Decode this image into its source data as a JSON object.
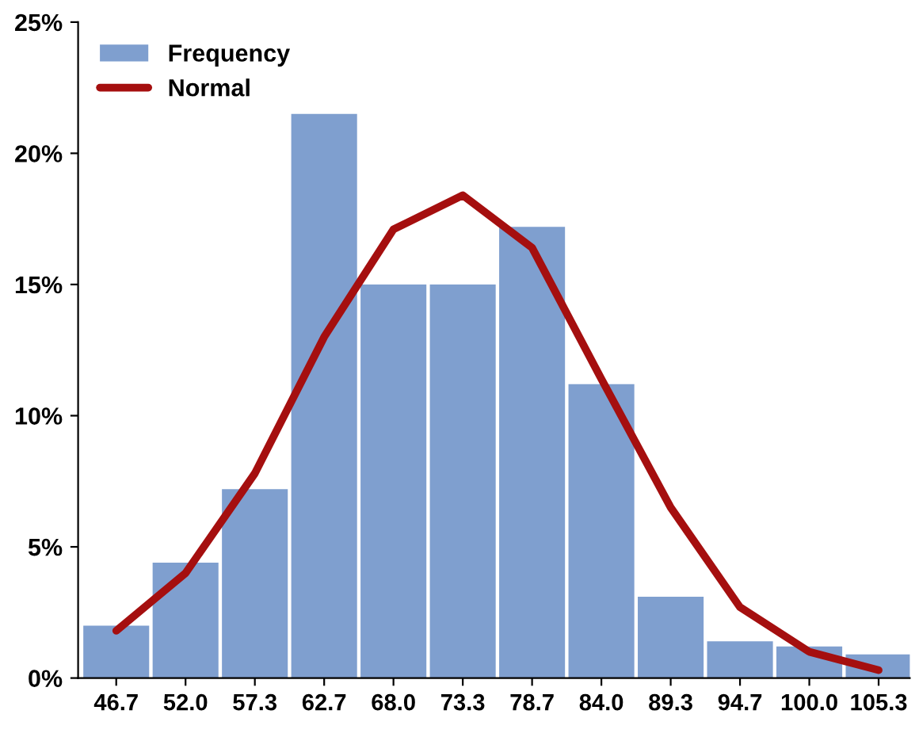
{
  "chart_data": {
    "type": "bar",
    "categories": [
      "46.7",
      "52.0",
      "57.3",
      "62.7",
      "68.0",
      "73.3",
      "78.7",
      "84.0",
      "89.3",
      "94.7",
      "100.0",
      "105.3"
    ],
    "series": [
      {
        "name": "Frequency",
        "color": "#7f9fcf",
        "values": [
          2.0,
          4.4,
          7.2,
          21.5,
          15.0,
          15.0,
          17.2,
          11.2,
          3.1,
          1.4,
          1.2,
          0.9
        ]
      },
      {
        "name": "Normal",
        "type": "line",
        "color": "#a50f0f",
        "values": [
          1.8,
          4.0,
          7.8,
          13.0,
          17.1,
          18.4,
          16.4,
          11.4,
          6.5,
          2.7,
          1.0,
          0.3
        ]
      }
    ],
    "ylim": [
      0,
      25
    ],
    "yticks": [
      {
        "value": 0,
        "label": "0%"
      },
      {
        "value": 5,
        "label": "5%"
      },
      {
        "value": 10,
        "label": "10%"
      },
      {
        "value": 15,
        "label": "15%"
      },
      {
        "value": 20,
        "label": "20%"
      },
      {
        "value": 25,
        "label": "25%"
      }
    ],
    "legend": "top left",
    "grid": false
  }
}
